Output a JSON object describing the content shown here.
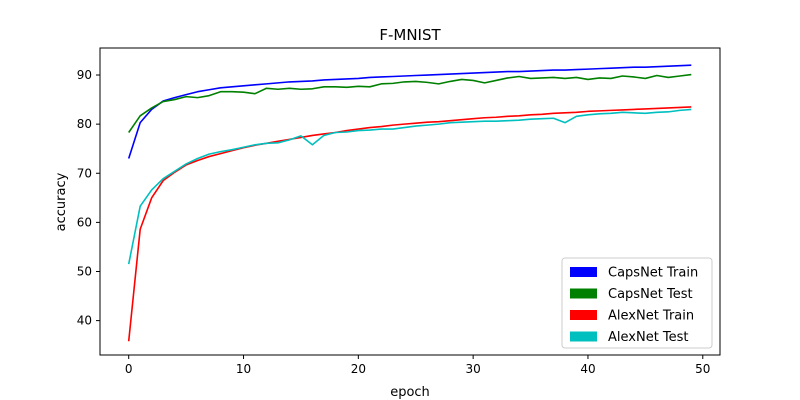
{
  "chart_data": {
    "type": "line",
    "title": "F-MNIST",
    "xlabel": "epoch",
    "ylabel": "accuracy",
    "xlim": [
      -2.5,
      51.5
    ],
    "ylim": [
      33,
      95.5
    ],
    "xticks": [
      0,
      10,
      20,
      30,
      40,
      50
    ],
    "yticks": [
      40,
      50,
      60,
      70,
      80,
      90
    ],
    "grid": false,
    "legend_position": "lower-right",
    "x": [
      0,
      1,
      2,
      3,
      4,
      5,
      6,
      7,
      8,
      9,
      10,
      11,
      12,
      13,
      14,
      15,
      16,
      17,
      18,
      19,
      20,
      21,
      22,
      23,
      24,
      25,
      26,
      27,
      28,
      29,
      30,
      31,
      32,
      33,
      34,
      35,
      36,
      37,
      38,
      39,
      40,
      41,
      42,
      43,
      44,
      45,
      46,
      47,
      48,
      49
    ],
    "series": [
      {
        "name": "CapsNet Train",
        "color": "#0000ff",
        "values": [
          73.0,
          80.3,
          83.0,
          84.7,
          85.4,
          86.0,
          86.6,
          87.0,
          87.4,
          87.6,
          87.8,
          88.0,
          88.2,
          88.4,
          88.6,
          88.7,
          88.8,
          89.0,
          89.1,
          89.2,
          89.3,
          89.5,
          89.6,
          89.7,
          89.8,
          89.9,
          90.0,
          90.1,
          90.2,
          90.3,
          90.4,
          90.5,
          90.6,
          90.7,
          90.7,
          90.8,
          90.9,
          91.0,
          91.0,
          91.1,
          91.2,
          91.3,
          91.4,
          91.5,
          91.6,
          91.6,
          91.7,
          91.8,
          91.9,
          92.0
        ]
      },
      {
        "name": "CapsNet Test",
        "color": "#008000",
        "values": [
          78.3,
          81.7,
          83.3,
          84.6,
          85.0,
          85.6,
          85.4,
          85.8,
          86.6,
          86.6,
          86.5,
          86.2,
          87.3,
          87.1,
          87.3,
          87.1,
          87.2,
          87.6,
          87.6,
          87.5,
          87.7,
          87.6,
          88.2,
          88.3,
          88.6,
          88.7,
          88.5,
          88.2,
          88.7,
          89.1,
          88.9,
          88.4,
          88.9,
          89.4,
          89.7,
          89.3,
          89.4,
          89.5,
          89.3,
          89.5,
          89.1,
          89.4,
          89.3,
          89.8,
          89.6,
          89.3,
          89.9,
          89.5,
          89.8,
          90.1
        ]
      },
      {
        "name": "AlexNet Train",
        "color": "#ff0000",
        "values": [
          35.8,
          58.6,
          65.0,
          68.5,
          70.2,
          71.7,
          72.6,
          73.4,
          74.0,
          74.6,
          75.2,
          75.7,
          76.1,
          76.5,
          76.9,
          77.3,
          77.7,
          78.0,
          78.3,
          78.7,
          79.0,
          79.3,
          79.5,
          79.8,
          80.0,
          80.2,
          80.4,
          80.5,
          80.7,
          80.9,
          81.1,
          81.3,
          81.4,
          81.6,
          81.7,
          81.9,
          82.0,
          82.2,
          82.3,
          82.4,
          82.6,
          82.7,
          82.8,
          82.9,
          83.0,
          83.1,
          83.2,
          83.3,
          83.4,
          83.5
        ]
      },
      {
        "name": "AlexNet Test",
        "color": "#00bfbf",
        "values": [
          51.5,
          63.3,
          66.6,
          68.9,
          70.4,
          71.9,
          73.0,
          73.9,
          74.4,
          74.8,
          75.3,
          75.8,
          76.1,
          76.2,
          76.8,
          77.6,
          75.8,
          77.7,
          78.3,
          78.4,
          78.7,
          78.8,
          79.0,
          79.0,
          79.3,
          79.6,
          79.8,
          80.0,
          80.3,
          80.4,
          80.5,
          80.6,
          80.6,
          80.7,
          80.8,
          81.0,
          81.1,
          81.2,
          80.3,
          81.6,
          81.9,
          82.1,
          82.2,
          82.4,
          82.3,
          82.2,
          82.4,
          82.5,
          82.8,
          83.0
        ]
      }
    ]
  }
}
